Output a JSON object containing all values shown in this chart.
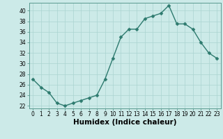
{
  "x": [
    0,
    1,
    2,
    3,
    4,
    5,
    6,
    7,
    8,
    9,
    10,
    11,
    12,
    13,
    14,
    15,
    16,
    17,
    18,
    19,
    20,
    21,
    22,
    23
  ],
  "y": [
    27,
    25.5,
    24.5,
    22.5,
    22,
    22.5,
    23,
    23.5,
    24,
    27,
    31,
    35,
    36.5,
    36.5,
    38.5,
    39,
    39.5,
    41,
    37.5,
    37.5,
    36.5,
    34,
    32,
    31
  ],
  "line_color": "#2d7a6e",
  "marker_color": "#2d7a6e",
  "bg_color": "#cceae8",
  "grid_color": "#aad4d0",
  "xlabel": "Humidex (Indice chaleur)",
  "ylim": [
    21.5,
    41.5
  ],
  "xlim": [
    -0.5,
    23.5
  ],
  "yticks": [
    22,
    24,
    26,
    28,
    30,
    32,
    34,
    36,
    38,
    40
  ],
  "xticks": [
    0,
    1,
    2,
    3,
    4,
    5,
    6,
    7,
    8,
    9,
    10,
    11,
    12,
    13,
    14,
    15,
    16,
    17,
    18,
    19,
    20,
    21,
    22,
    23
  ],
  "tick_fontsize": 5.5,
  "xlabel_fontsize": 7.5,
  "marker_size": 2.5,
  "line_width": 1.0
}
